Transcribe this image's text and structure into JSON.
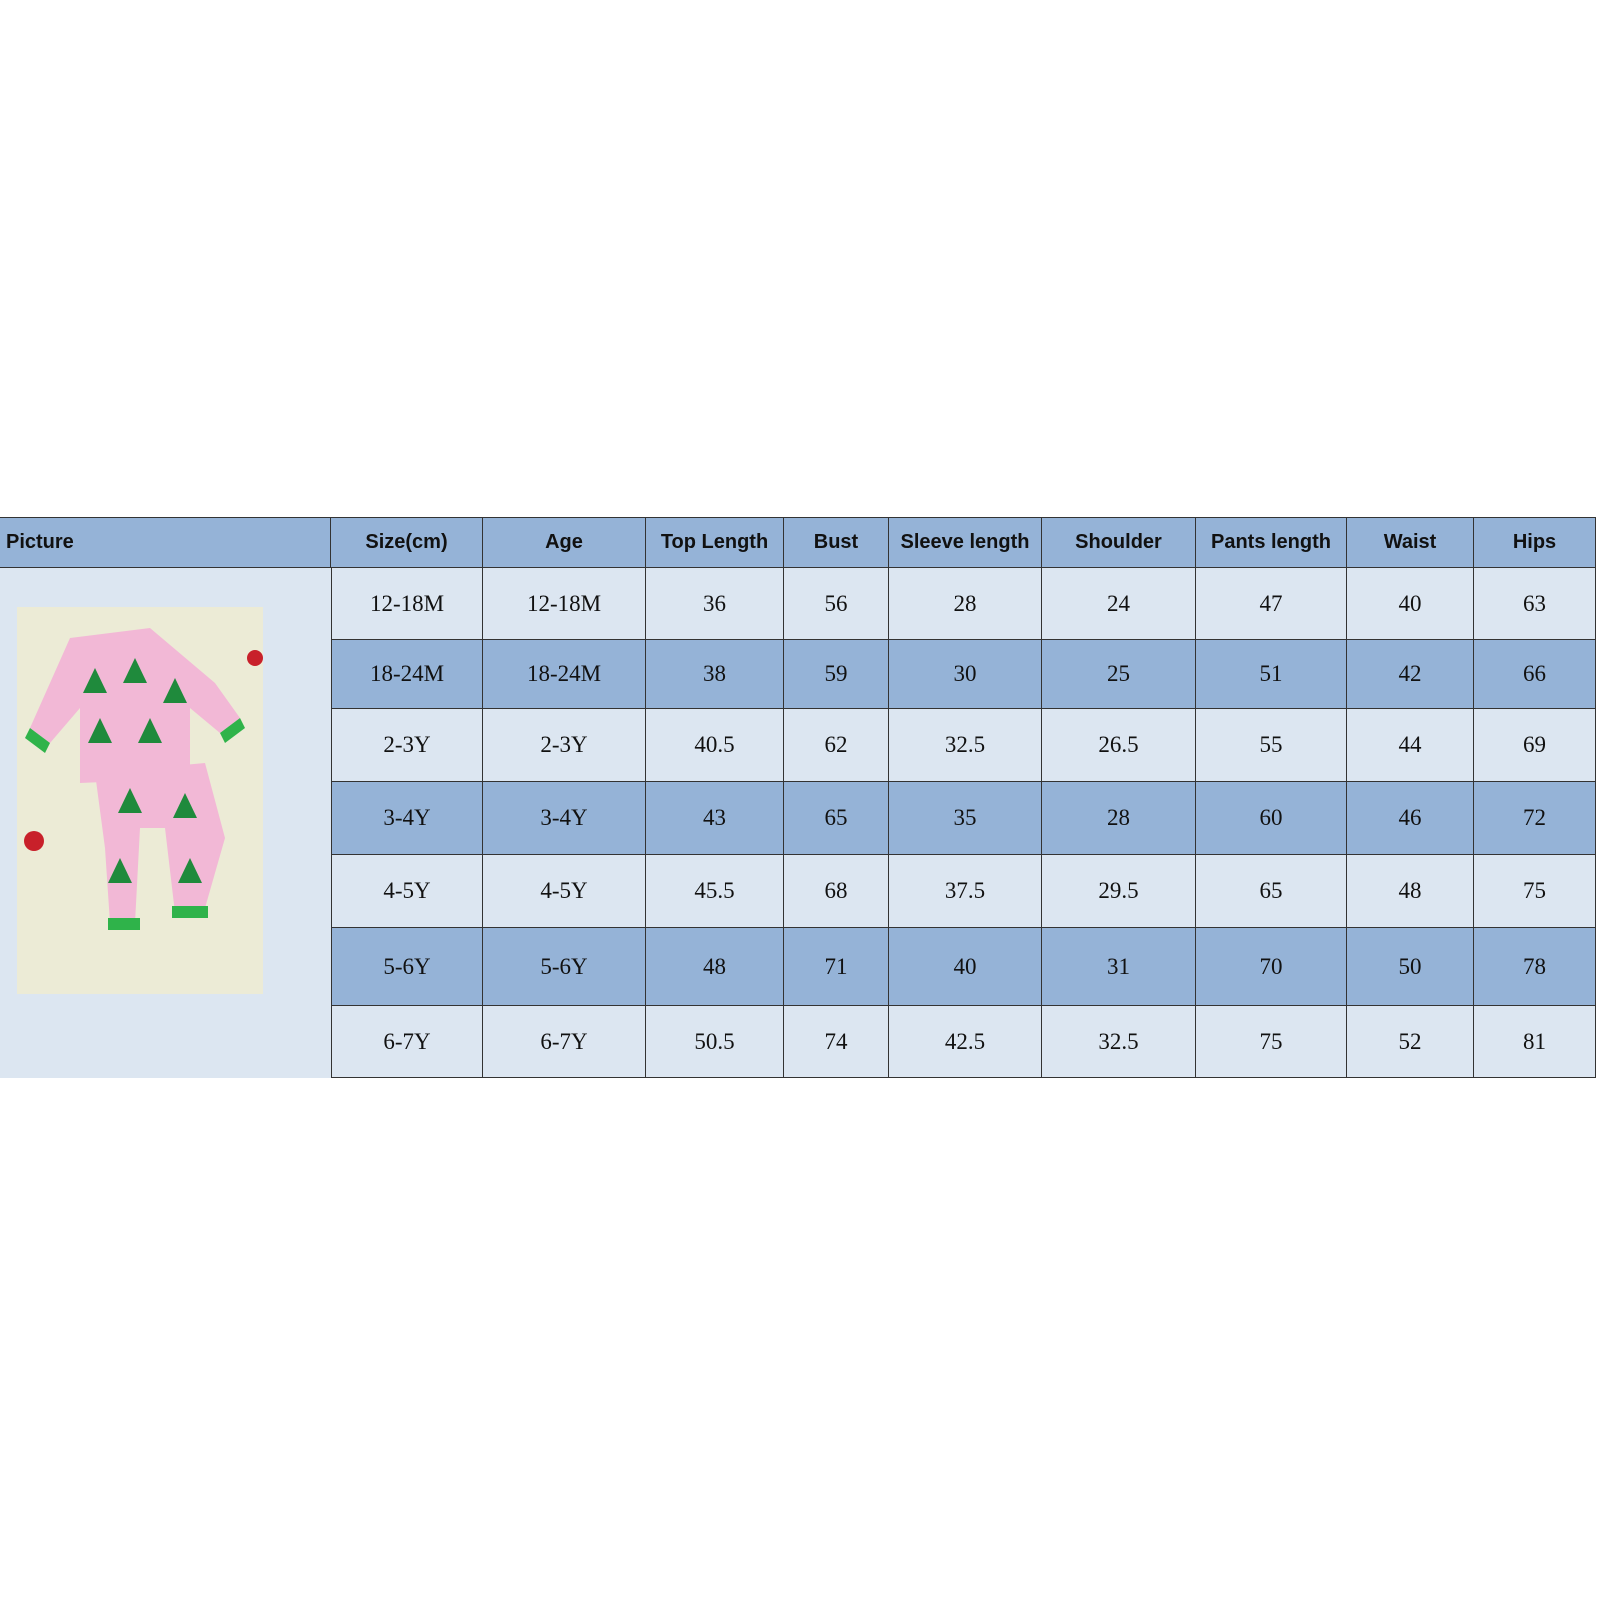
{
  "table": {
    "header": [
      "Picture",
      "Size(cm)",
      "Age",
      "Top Length",
      "Bust",
      "Sleeve length",
      "Shoulder",
      "Pants length",
      "Waist",
      "Hips"
    ],
    "rows": [
      [
        "12-18M",
        "12-18M",
        36,
        56,
        28,
        24,
        47,
        40,
        63
      ],
      [
        "18-24M",
        "18-24M",
        38,
        59,
        30,
        25,
        51,
        42,
        66
      ],
      [
        "2-3Y",
        "2-3Y",
        40.5,
        62,
        32.5,
        26.5,
        55,
        44,
        69
      ],
      [
        "3-4Y",
        "3-4Y",
        43,
        65,
        35,
        28,
        60,
        46,
        72
      ],
      [
        "4-5Y",
        "4-5Y",
        45.5,
        68,
        37.5,
        29.5,
        65,
        48,
        75
      ],
      [
        "5-6Y",
        "5-6Y",
        48,
        71,
        40,
        31,
        70,
        50,
        78
      ],
      [
        "6-7Y",
        "6-7Y",
        50.5,
        74,
        42.5,
        32.5,
        75,
        52,
        81
      ]
    ]
  }
}
